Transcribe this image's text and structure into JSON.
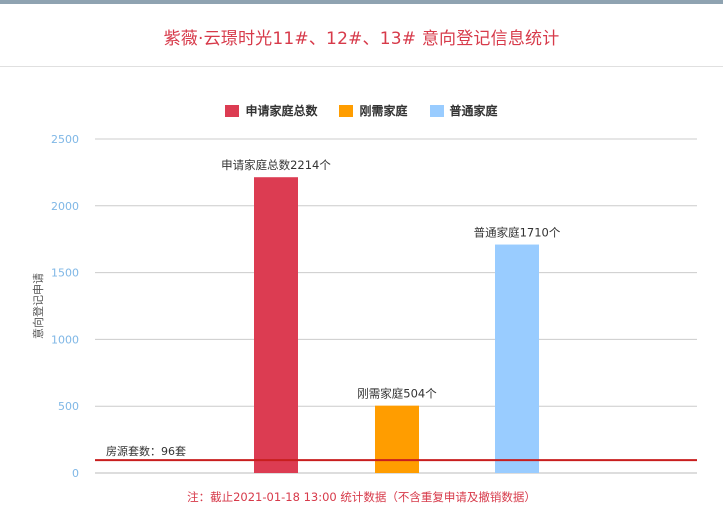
{
  "title": "紫薇·云璟时光11#、12#、13# 意向登记信息统计",
  "footnote": "注：截止2021-01-18 13:00 统计数据（不含重复申请及撤销数据）",
  "chart_data": {
    "type": "bar",
    "title": "紫薇·云璟时光11#、12#、13# 意向登记信息统计",
    "ylabel": "意向登记申请",
    "xlabel": "",
    "ylim": [
      0,
      2500
    ],
    "yticks": [
      0,
      500,
      1000,
      1500,
      2000,
      2500
    ],
    "grid": true,
    "legend_position": "top-center",
    "series": [
      {
        "name": "申请家庭总数",
        "values": [
          2214
        ],
        "color": "#dc3c52",
        "label": "申请家庭总数2214个"
      },
      {
        "name": "刚需家庭",
        "values": [
          504
        ],
        "color": "#ff9d00",
        "label": "刚需家庭504个"
      },
      {
        "name": "普通家庭",
        "values": [
          1710
        ],
        "color": "#99ccff",
        "label": "普通家庭1710个"
      }
    ],
    "reference_line": {
      "value": 96,
      "label": "房源套数：96套",
      "color": "#c81e1e"
    }
  }
}
